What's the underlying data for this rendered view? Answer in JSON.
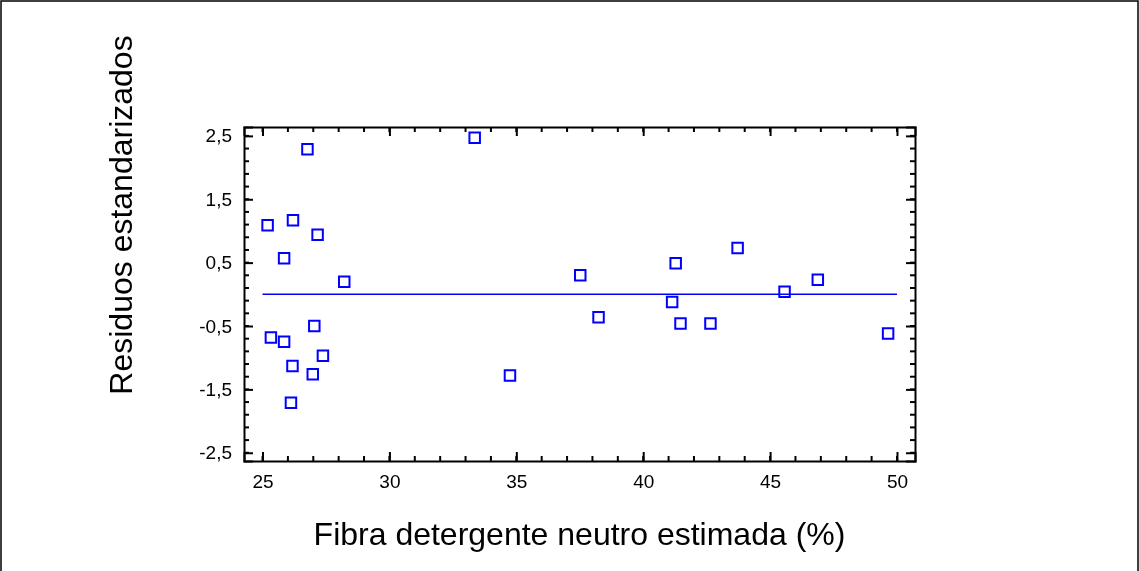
{
  "chart_data": {
    "type": "scatter",
    "xlabel": "Fibra detergente neutro estimada (%)",
    "ylabel": "Residuos estandarizados",
    "x": [
      25.2,
      26.77,
      26.2,
      27.17,
      25.85,
      28.22,
      25.33,
      25.85,
      27.04,
      27.38,
      26.18,
      26.98,
      26.12,
      33.36,
      34.75,
      37.52,
      38.24,
      41.14,
      41.28,
      41.47,
      42.65,
      43.72,
      45.57,
      46.88,
      49.65
    ],
    "series": [
      {
        "color": "#0000ff",
        "values": [
          1.09,
          2.29,
          1.17,
          0.94,
          0.57,
          0.2,
          -0.68,
          -0.75,
          -0.5,
          -0.97,
          -1.13,
          -1.26,
          -1.71,
          2.47,
          -1.28,
          0.3,
          -0.36,
          -0.12,
          0.49,
          -0.46,
          -0.46,
          0.73,
          0.04,
          0.23,
          -0.62
        ]
      }
    ],
    "marker": "square",
    "xlim": [
      24.27,
      50.71
    ],
    "xticks": [
      25,
      30,
      35,
      40,
      45,
      50
    ],
    "ylim": [
      -2.63,
      2.64
    ],
    "yticks": [
      {
        "value": 2.5,
        "label": "2,5"
      },
      {
        "value": 1.5,
        "label": "1,5"
      },
      {
        "value": 0.5,
        "label": "0,5"
      },
      {
        "value": -0.5,
        "label": "-0,5"
      },
      {
        "value": -1.5,
        "label": "-1,5"
      },
      {
        "value": -2.5,
        "label": "-2,5"
      }
    ],
    "ref_lines": [
      {
        "axis": "y",
        "value": 0,
        "color": "#0000ff"
      }
    ]
  }
}
